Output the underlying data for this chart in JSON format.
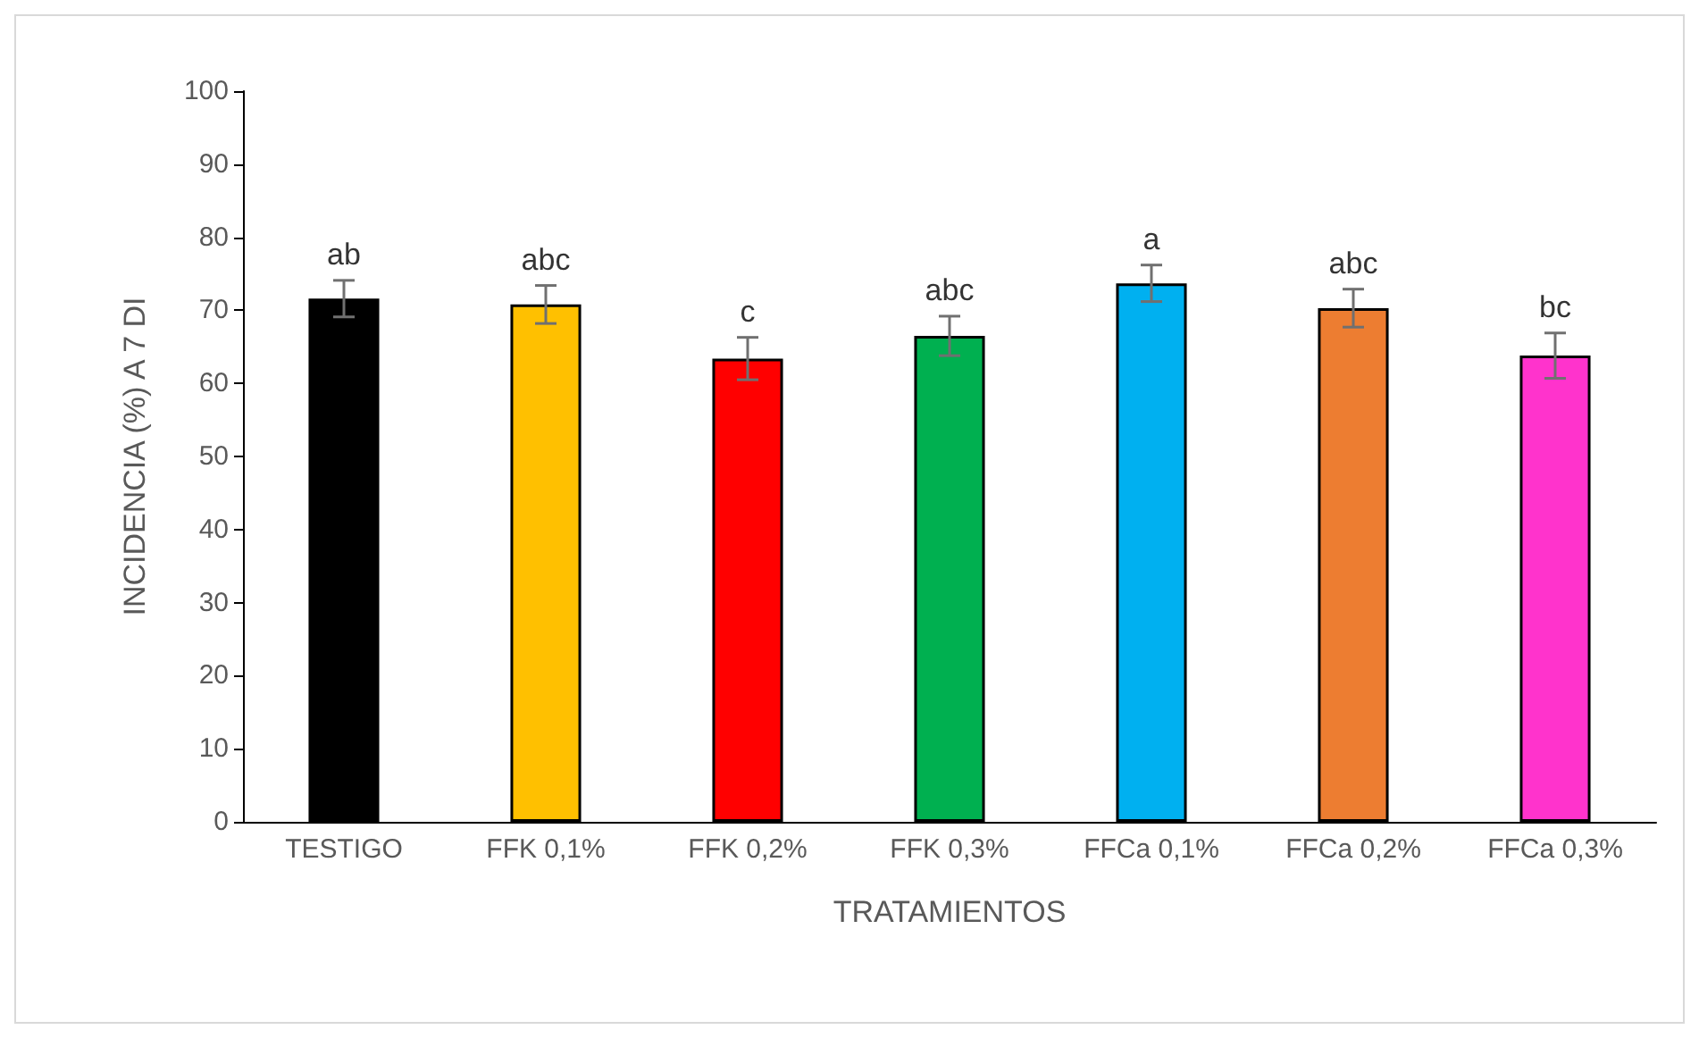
{
  "chart_data": {
    "type": "bar",
    "xlabel": "TRATAMIENTOS",
    "ylabel": "INCIDENCIA (%) A 7 DI",
    "categories": [
      "TESTIGO",
      "FFK 0,1%",
      "FFK 0,2%",
      "FFK 0,3%",
      "FFCa 0,1%",
      "FFCa 0,2%",
      "FFCa 0,3%"
    ],
    "values": [
      71.6,
      70.8,
      63.4,
      66.5,
      73.7,
      70.3,
      63.8
    ],
    "errors": [
      2.5,
      2.6,
      2.9,
      2.7,
      2.5,
      2.6,
      3.1
    ],
    "colors": [
      "#000000",
      "#ffc000",
      "#ff0000",
      "#00b050",
      "#00b0f0",
      "#ed7d31",
      "#ff33cc"
    ],
    "ylim": [
      0,
      100
    ],
    "yticks": [
      0,
      10,
      20,
      30,
      40,
      50,
      60,
      70,
      80,
      90,
      100
    ],
    "grid": false,
    "annotations": [
      {
        "text": "ab",
        "x": "TESTIGO",
        "y": 74.1
      },
      {
        "text": "abc",
        "x": "FFK 0,1%",
        "y": 73.4
      },
      {
        "text": "c",
        "x": "FFK 0,2%",
        "y": 66.3
      },
      {
        "text": "abc",
        "x": "FFK 0,3%",
        "y": 69.2
      },
      {
        "text": "a",
        "x": "FFCa 0,1%",
        "y": 76.2
      },
      {
        "text": "abc",
        "x": "FFCa 0,2%",
        "y": 72.9
      },
      {
        "text": "bc",
        "x": "FFCa 0,3%",
        "y": 66.9
      }
    ]
  }
}
